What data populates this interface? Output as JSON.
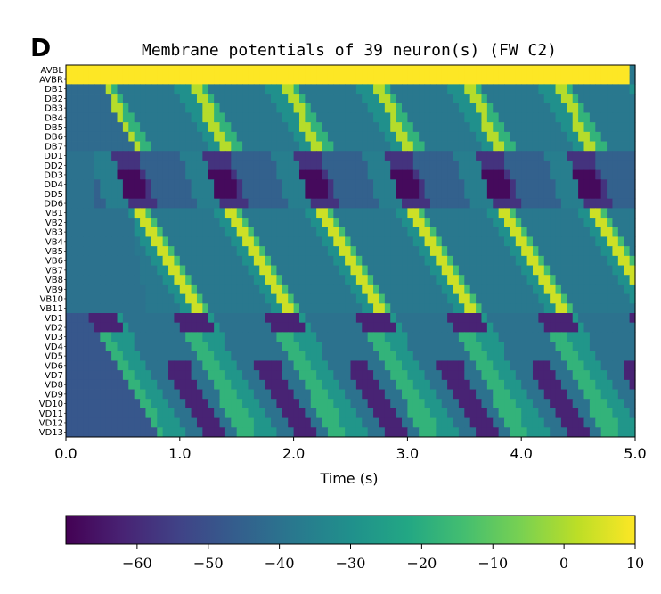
{
  "panel_letter": "D",
  "chart_data": {
    "type": "heatmap",
    "title": "Membrane potentials of 39 neuron(s) (FW C2)",
    "xlabel": "Time (s)",
    "ylabel": "",
    "xlim": [
      0.0,
      5.0
    ],
    "x_ticks": [
      "0.0",
      "1.0",
      "2.0",
      "3.0",
      "4.0",
      "5.0"
    ],
    "x_tick_values": [
      0,
      1,
      2,
      3,
      4,
      5
    ],
    "rows": [
      "AVBL",
      "AVBR",
      "DB1",
      "DB2",
      "DB3",
      "DB4",
      "DB5",
      "DB6",
      "DB7",
      "DD1",
      "DD2",
      "DD3",
      "DD4",
      "DD5",
      "DD6",
      "VB1",
      "VB2",
      "VB3",
      "VB4",
      "VB5",
      "VB6",
      "VB7",
      "VB8",
      "VB9",
      "VB10",
      "VB11",
      "VD1",
      "VD2",
      "VD3",
      "VD4",
      "VD5",
      "VD6",
      "VD7",
      "VD8",
      "VD9",
      "VD10",
      "VD11",
      "VD12",
      "VD13"
    ],
    "colormap": "viridis",
    "colorbar": {
      "range": [
        -70,
        10
      ],
      "ticks": [
        "−60",
        "−50",
        "−40",
        "−30",
        "−20",
        "−10",
        "0",
        "10"
      ],
      "tick_values": [
        -60,
        -50,
        -40,
        -30,
        -20,
        -10,
        0,
        10
      ]
    },
    "oscillation_period_s": 0.8,
    "wave_onset_s": 0.62,
    "wave_end_s": 4.95,
    "background_mV": {
      "DB": -38,
      "DD": -45,
      "VB": -38,
      "VD": -40
    },
    "peak_mV": {
      "AVB": 10,
      "DB": -5,
      "DD_trough": -68,
      "VB": 4,
      "VD_active": -18,
      "VD_trough": -62
    },
    "colors": {
      "viridis_low": "#440154",
      "viridis_mid": "#21918c",
      "viridis_high": "#fde725"
    }
  }
}
